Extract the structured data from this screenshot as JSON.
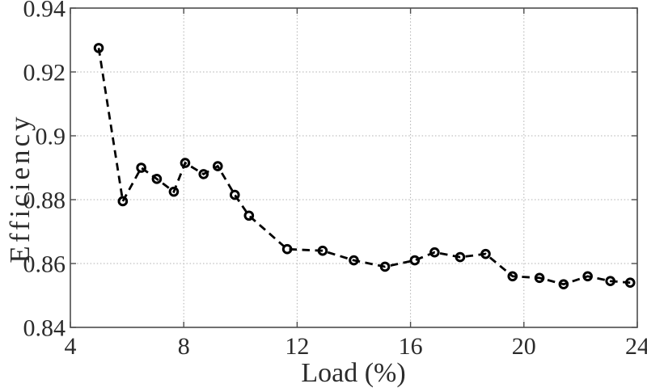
{
  "figure": {
    "background": "#ffffff",
    "axis_color": "#4d4d4d",
    "grid_color": "#b0b0b0",
    "text_color": "#2b2b2b",
    "line_color": "#000000"
  },
  "chart_data": {
    "type": "line",
    "title": "",
    "xlabel": "Load (%)",
    "ylabel": "Efficiency",
    "xlim": [
      4,
      24
    ],
    "ylim": [
      0.84,
      0.94
    ],
    "xticks": [
      4,
      8,
      12,
      16,
      20,
      24
    ],
    "yticks": [
      0.84,
      0.86,
      0.88,
      0.9,
      0.92,
      0.94
    ],
    "xtick_labels": [
      "4",
      "8",
      "12",
      "16",
      "20",
      "24"
    ],
    "ytick_labels": [
      "0.84",
      "0.86",
      "0.88",
      "0.9",
      "0.92",
      "0.94"
    ],
    "grid": true,
    "legend": "none",
    "line_style": "dashed",
    "marker": "circle-open",
    "series": [
      {
        "name": "efficiency-vs-load",
        "x": [
          5.0,
          5.85,
          6.5,
          7.05,
          7.65,
          8.05,
          8.7,
          9.2,
          9.8,
          10.3,
          11.65,
          12.9,
          14.0,
          15.1,
          16.15,
          16.85,
          17.75,
          18.65,
          19.6,
          20.55,
          21.4,
          22.25,
          23.05,
          23.75
        ],
        "y": [
          0.9275,
          0.8795,
          0.89,
          0.8865,
          0.8825,
          0.8915,
          0.888,
          0.8905,
          0.8815,
          0.875,
          0.8645,
          0.864,
          0.861,
          0.859,
          0.861,
          0.8635,
          0.862,
          0.863,
          0.856,
          0.8555,
          0.8535,
          0.856,
          0.8545,
          0.854
        ]
      }
    ]
  }
}
